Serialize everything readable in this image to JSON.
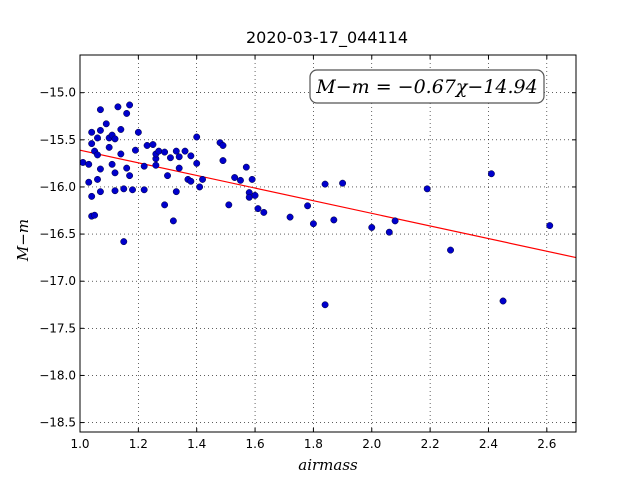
{
  "chart_data": {
    "type": "scatter",
    "title": "2020-03-17_044114",
    "xlabel": "airmass",
    "ylabel": "M−m",
    "xlim": [
      1.0,
      2.7
    ],
    "ylim": [
      -18.6,
      -14.6
    ],
    "x_ticks": [
      "1.0",
      "1.2",
      "1.4",
      "1.6",
      "1.8",
      "2.0",
      "2.2",
      "2.4",
      "2.6"
    ],
    "y_ticks": [
      "−15.0",
      "−15.5",
      "−16.0",
      "−16.5",
      "−17.0",
      "−17.5",
      "−18.0",
      "−18.5"
    ],
    "grid": true,
    "annotation": "M−m = −0.67χ−14.94",
    "fit": {
      "slope": -0.67,
      "intercept": -14.94,
      "color": "#ff0000"
    },
    "point_color": "#0000cc",
    "points": [
      [
        1.01,
        -15.74
      ],
      [
        1.03,
        -15.76
      ],
      [
        1.03,
        -15.95
      ],
      [
        1.04,
        -15.42
      ],
      [
        1.04,
        -15.54
      ],
      [
        1.04,
        -16.1
      ],
      [
        1.04,
        -16.31
      ],
      [
        1.05,
        -16.3
      ],
      [
        1.05,
        -15.62
      ],
      [
        1.06,
        -15.92
      ],
      [
        1.06,
        -15.66
      ],
      [
        1.06,
        -15.48
      ],
      [
        1.07,
        -15.4
      ],
      [
        1.07,
        -15.18
      ],
      [
        1.07,
        -16.05
      ],
      [
        1.07,
        -15.81
      ],
      [
        1.09,
        -15.33
      ],
      [
        1.1,
        -15.48
      ],
      [
        1.1,
        -15.58
      ],
      [
        1.11,
        -15.76
      ],
      [
        1.11,
        -15.45
      ],
      [
        1.12,
        -15.49
      ],
      [
        1.12,
        -15.85
      ],
      [
        1.12,
        -16.04
      ],
      [
        1.13,
        -15.15
      ],
      [
        1.14,
        -15.39
      ],
      [
        1.14,
        -15.65
      ],
      [
        1.15,
        -16.58
      ],
      [
        1.15,
        -16.02
      ],
      [
        1.16,
        -15.22
      ],
      [
        1.16,
        -15.8
      ],
      [
        1.17,
        -15.13
      ],
      [
        1.17,
        -15.88
      ],
      [
        1.18,
        -16.03
      ],
      [
        1.19,
        -15.61
      ],
      [
        1.2,
        -15.42
      ],
      [
        1.22,
        -15.78
      ],
      [
        1.22,
        -16.03
      ],
      [
        1.23,
        -15.56
      ],
      [
        1.25,
        -15.55
      ],
      [
        1.26,
        -15.7
      ],
      [
        1.26,
        -15.65
      ],
      [
        1.26,
        -15.77
      ],
      [
        1.27,
        -15.62
      ],
      [
        1.29,
        -16.19
      ],
      [
        1.29,
        -15.63
      ],
      [
        1.3,
        -15.88
      ],
      [
        1.31,
        -15.69
      ],
      [
        1.32,
        -16.36
      ],
      [
        1.33,
        -16.05
      ],
      [
        1.33,
        -15.62
      ],
      [
        1.34,
        -15.68
      ],
      [
        1.34,
        -15.8
      ],
      [
        1.36,
        -15.62
      ],
      [
        1.37,
        -15.92
      ],
      [
        1.38,
        -15.67
      ],
      [
        1.38,
        -15.94
      ],
      [
        1.4,
        -15.47
      ],
      [
        1.4,
        -15.75
      ],
      [
        1.41,
        -16.0
      ],
      [
        1.42,
        -15.92
      ],
      [
        1.48,
        -15.53
      ],
      [
        1.49,
        -15.56
      ],
      [
        1.49,
        -15.72
      ],
      [
        1.51,
        -16.19
      ],
      [
        1.53,
        -15.9
      ],
      [
        1.55,
        -15.93
      ],
      [
        1.57,
        -15.79
      ],
      [
        1.58,
        -16.06
      ],
      [
        1.58,
        -16.11
      ],
      [
        1.59,
        -15.92
      ],
      [
        1.6,
        -16.09
      ],
      [
        1.61,
        -16.23
      ],
      [
        1.63,
        -16.27
      ],
      [
        1.72,
        -16.32
      ],
      [
        1.78,
        -16.2
      ],
      [
        1.8,
        -16.39
      ],
      [
        1.84,
        -15.97
      ],
      [
        1.84,
        -17.25
      ],
      [
        1.87,
        -16.35
      ],
      [
        1.9,
        -15.96
      ],
      [
        2.0,
        -16.43
      ],
      [
        2.06,
        -16.48
      ],
      [
        2.08,
        -16.36
      ],
      [
        2.19,
        -16.02
      ],
      [
        2.27,
        -16.67
      ],
      [
        2.41,
        -15.86
      ],
      [
        2.45,
        -17.21
      ],
      [
        2.61,
        -16.41
      ]
    ]
  }
}
